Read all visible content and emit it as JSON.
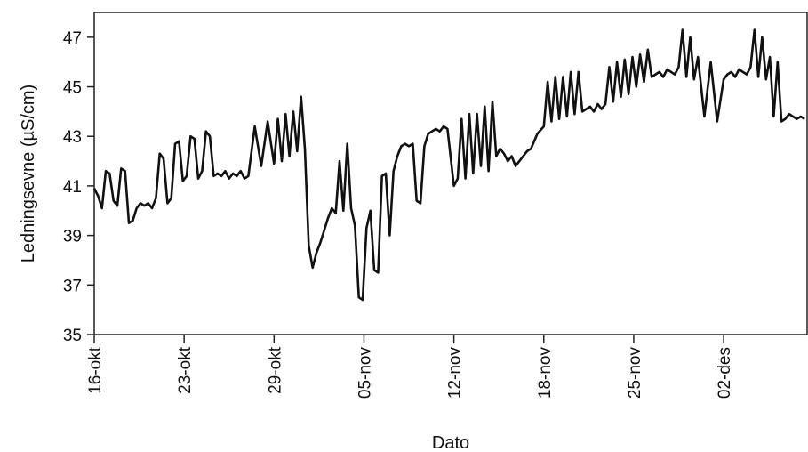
{
  "chart_data": {
    "type": "line",
    "title": "",
    "xlabel": "Dato",
    "ylabel": "Ledningsevne (µS/cm)",
    "ylim": [
      35,
      48
    ],
    "xlim": [
      0,
      55.5
    ],
    "yticks": [
      35,
      37,
      39,
      41,
      43,
      45,
      47
    ],
    "xticks": [
      {
        "label": "16-okt",
        "day": 0
      },
      {
        "label": "23-okt",
        "day": 7
      },
      {
        "label": "29-okt",
        "day": 14
      },
      {
        "label": "05-nov",
        "day": 21
      },
      {
        "label": "12-nov",
        "day": 28
      },
      {
        "label": "18-nov",
        "day": 35
      },
      {
        "label": "25-nov",
        "day": 42
      },
      {
        "label": "02-des",
        "day": 49
      }
    ],
    "grid": false,
    "line_color": "#111111",
    "series": [
      {
        "name": "",
        "x": [
          0,
          0.3,
          0.6,
          0.9,
          1.2,
          1.5,
          1.8,
          2.1,
          2.4,
          2.7,
          3.0,
          3.3,
          3.6,
          3.9,
          4.2,
          4.5,
          4.8,
          5.1,
          5.4,
          5.7,
          6.0,
          6.3,
          6.6,
          6.9,
          7.2,
          7.5,
          7.8,
          8.1,
          8.4,
          8.7,
          9.0,
          9.3,
          9.6,
          9.9,
          10.2,
          10.5,
          10.8,
          11.1,
          11.4,
          11.7,
          12.0,
          12.5,
          13.0,
          13.5,
          14.0,
          14.3,
          14.6,
          14.9,
          15.2,
          15.5,
          15.8,
          16.1,
          16.4,
          16.7,
          17.0,
          17.3,
          17.6,
          17.9,
          18.2,
          18.5,
          18.8,
          19.1,
          19.4,
          19.7,
          20.0,
          20.3,
          20.6,
          20.9,
          21.2,
          21.5,
          21.8,
          22.1,
          22.4,
          22.7,
          23.0,
          23.3,
          23.6,
          23.9,
          24.2,
          24.5,
          24.8,
          25.1,
          25.4,
          25.7,
          26.0,
          26.3,
          26.6,
          26.9,
          27.2,
          27.5,
          28.0,
          28.3,
          28.6,
          28.9,
          29.2,
          29.5,
          29.8,
          30.1,
          30.4,
          30.7,
          31.0,
          31.3,
          31.6,
          31.9,
          32.2,
          32.5,
          32.8,
          33.1,
          33.4,
          33.7,
          34.0,
          34.5,
          35.0,
          35.3,
          35.6,
          35.9,
          36.2,
          36.5,
          36.8,
          37.1,
          37.4,
          37.7,
          38.0,
          38.3,
          38.6,
          38.9,
          39.2,
          39.5,
          39.8,
          40.1,
          40.4,
          40.7,
          41.0,
          41.3,
          41.6,
          41.9,
          42.2,
          42.5,
          42.8,
          43.1,
          43.4,
          43.7,
          44.0,
          44.3,
          44.6,
          44.9,
          45.2,
          45.5,
          45.8,
          46.1,
          46.4,
          46.7,
          47.0,
          47.5,
          48.0,
          48.5,
          49.0,
          49.3,
          49.6,
          49.9,
          50.2,
          50.5,
          50.8,
          51.1,
          51.4,
          51.7,
          52.0,
          52.3,
          52.6,
          52.9,
          53.2,
          53.5,
          53.8,
          54.1,
          54.4,
          54.7,
          55.0,
          55.3
        ],
        "y": [
          40.9,
          40.6,
          40.1,
          41.6,
          41.5,
          40.4,
          40.2,
          41.7,
          41.6,
          39.5,
          39.6,
          40.1,
          40.3,
          40.2,
          40.3,
          40.1,
          40.5,
          42.3,
          42.1,
          40.3,
          40.5,
          42.7,
          42.8,
          41.2,
          41.4,
          43.0,
          42.9,
          41.3,
          41.6,
          43.2,
          43.0,
          41.4,
          41.5,
          41.4,
          41.6,
          41.3,
          41.5,
          41.4,
          41.6,
          41.3,
          41.4,
          43.4,
          41.8,
          43.6,
          41.9,
          43.7,
          42.0,
          43.9,
          42.2,
          44.0,
          42.4,
          44.6,
          42.5,
          38.6,
          37.7,
          38.3,
          38.7,
          39.2,
          39.7,
          40.1,
          39.9,
          42.0,
          40.0,
          42.7,
          40.1,
          39.4,
          36.5,
          36.4,
          39.3,
          40.0,
          37.6,
          37.5,
          41.4,
          41.5,
          39.0,
          41.6,
          42.2,
          42.6,
          42.7,
          42.6,
          42.7,
          40.4,
          40.3,
          42.6,
          43.1,
          43.2,
          43.3,
          43.2,
          43.4,
          43.3,
          41.0,
          41.3,
          43.7,
          41.3,
          43.9,
          41.5,
          43.9,
          41.8,
          44.2,
          41.6,
          44.4,
          42.2,
          42.5,
          42.3,
          42.0,
          42.2,
          41.8,
          42.0,
          42.2,
          42.4,
          42.5,
          43.1,
          43.4,
          45.2,
          43.6,
          45.4,
          43.7,
          45.4,
          43.8,
          45.6,
          43.9,
          45.6,
          44.0,
          44.1,
          44.2,
          44.0,
          44.3,
          44.1,
          44.3,
          45.8,
          44.4,
          46.0,
          44.6,
          46.1,
          44.7,
          46.2,
          45.0,
          46.3,
          45.2,
          46.5,
          45.4,
          45.5,
          45.6,
          45.4,
          45.7,
          45.6,
          45.5,
          45.8,
          47.3,
          45.4,
          47.0,
          45.3,
          46.2,
          43.8,
          46.0,
          43.6,
          45.3,
          45.5,
          45.6,
          45.4,
          45.7,
          45.6,
          45.5,
          45.8,
          47.3,
          45.4,
          47.0,
          45.3,
          46.2,
          43.8,
          46.0,
          43.6,
          43.7,
          43.9,
          43.8,
          43.7,
          43.8,
          43.7
        ]
      }
    ]
  }
}
